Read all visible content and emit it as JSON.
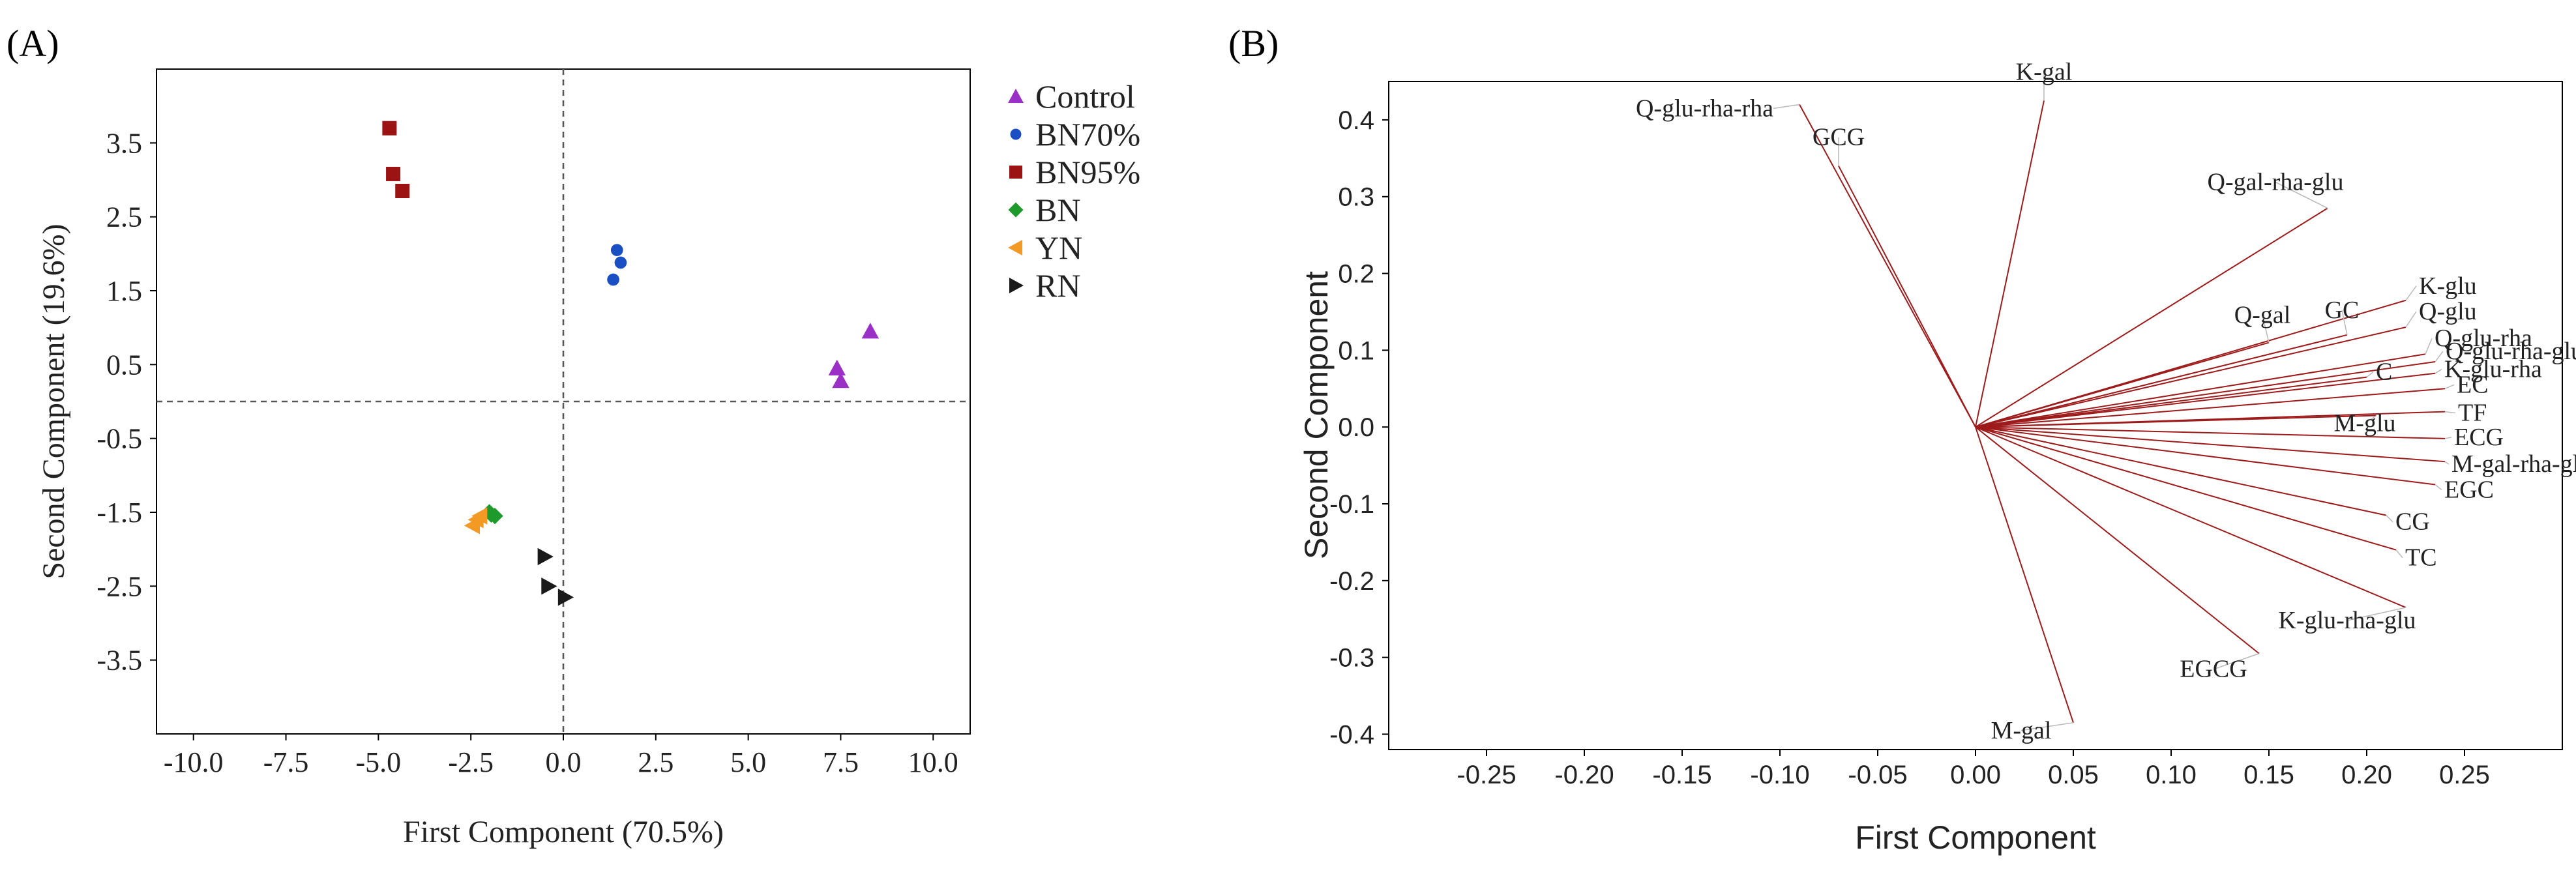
{
  "panel_a": {
    "label": "(A)",
    "chart_data": {
      "type": "scatter",
      "title": "",
      "xlabel": "First Component (70.5%)",
      "ylabel": "Second Component (19.6%)",
      "xlim": [
        -11.0,
        11.0
      ],
      "ylim": [
        -4.5,
        4.5
      ],
      "xticks": [
        -10.0,
        -7.5,
        -5.0,
        -2.5,
        0.0,
        2.5,
        5.0,
        7.5,
        10.0
      ],
      "xtick_labels": [
        "-10.0",
        "-7.5",
        "-5.0",
        "-2.5",
        "0.0",
        "2.5",
        "5.0",
        "7.5",
        "10.0"
      ],
      "yticks": [
        3.5,
        2.5,
        1.5,
        0.5,
        -0.5,
        -1.5,
        -2.5,
        -3.5
      ],
      "ytick_labels": [
        "3.5",
        "2.5",
        "1.5",
        "0.5",
        "-0.5",
        "-1.5",
        "-2.5",
        "-3.5"
      ],
      "reference_lines": {
        "x": 0.0,
        "y": 0.0
      },
      "legend_position": "right",
      "series": [
        {
          "name": "Control",
          "marker": "triangle-up",
          "color": "#9b30c7",
          "points": [
            [
              8.3,
              0.95
            ],
            [
              7.4,
              0.45
            ],
            [
              7.5,
              0.28
            ]
          ]
        },
        {
          "name": "BN70%",
          "marker": "circle",
          "color": "#1a4fc4",
          "points": [
            [
              1.45,
              2.05
            ],
            [
              1.55,
              1.88
            ],
            [
              1.35,
              1.65
            ]
          ]
        },
        {
          "name": "BN95%",
          "marker": "square",
          "color": "#9b1313",
          "points": [
            [
              -4.7,
              3.7
            ],
            [
              -4.6,
              3.08
            ],
            [
              -4.35,
              2.85
            ]
          ]
        },
        {
          "name": "BN",
          "marker": "diamond",
          "color": "#1e9a2c",
          "points": [
            [
              -2.0,
              -1.5
            ],
            [
              -1.85,
              -1.55
            ],
            [
              -1.95,
              -1.53
            ]
          ]
        },
        {
          "name": "YN",
          "marker": "triangle-left",
          "color": "#f39a24",
          "points": [
            [
              -2.35,
              -1.6
            ],
            [
              -2.45,
              -1.68
            ],
            [
              -2.25,
              -1.55
            ]
          ]
        },
        {
          "name": "RN",
          "marker": "triangle-right",
          "color": "#1a1a1a",
          "points": [
            [
              -0.5,
              -2.1
            ],
            [
              -0.4,
              -2.5
            ],
            [
              0.05,
              -2.65
            ]
          ]
        }
      ]
    }
  },
  "panel_b": {
    "label": "(B)",
    "chart_data": {
      "type": "loading-plot",
      "title": "",
      "xlabel": "First Component",
      "ylabel": "Second Component",
      "xlim": [
        -0.3,
        0.3
      ],
      "ylim": [
        -0.42,
        0.45
      ],
      "xticks": [
        -0.25,
        -0.2,
        -0.15,
        -0.1,
        -0.05,
        0.0,
        0.05,
        0.1,
        0.15,
        0.2,
        0.25
      ],
      "xtick_labels": [
        "-0.25",
        "-0.20",
        "-0.15",
        "-0.10",
        "-0.05",
        "0.00",
        "0.05",
        "0.10",
        "0.15",
        "0.20",
        "0.25"
      ],
      "yticks": [
        0.4,
        0.3,
        0.2,
        0.1,
        0.0,
        -0.1,
        -0.2,
        -0.3,
        -0.4
      ],
      "ytick_labels": [
        "0.4",
        "0.3",
        "0.2",
        "0.1",
        "0.0",
        "-0.1",
        "-0.2",
        "-0.3",
        "-0.4"
      ],
      "line_color": "#9e1b1b",
      "leader_color": "#b9b9b9",
      "vectors": [
        {
          "name": "K-gal",
          "x": 0.035,
          "y": 0.425
        },
        {
          "name": "Q-glu-rha-rha",
          "x": -0.09,
          "y": 0.42
        },
        {
          "name": "GCG",
          "x": -0.07,
          "y": 0.34
        },
        {
          "name": "Q-gal-rha-glu",
          "x": 0.18,
          "y": 0.285
        },
        {
          "name": "K-glu",
          "x": 0.22,
          "y": 0.165
        },
        {
          "name": "Q-glu",
          "x": 0.22,
          "y": 0.13
        },
        {
          "name": "Q-gal",
          "x": 0.15,
          "y": 0.11
        },
        {
          "name": "GC",
          "x": 0.19,
          "y": 0.12
        },
        {
          "name": "Q-glu-rha",
          "x": 0.23,
          "y": 0.095
        },
        {
          "name": "Q-glu-rha-glu",
          "x": 0.235,
          "y": 0.085
        },
        {
          "name": "K-glu-rha",
          "x": 0.235,
          "y": 0.07
        },
        {
          "name": "C",
          "x": 0.2,
          "y": 0.065
        },
        {
          "name": "EC",
          "x": 0.24,
          "y": 0.05
        },
        {
          "name": "TF",
          "x": 0.24,
          "y": 0.02
        },
        {
          "name": "M-glu",
          "x": 0.205,
          "y": 0.015
        },
        {
          "name": "ECG",
          "x": 0.24,
          "y": -0.015
        },
        {
          "name": "M-gal-rha-glu",
          "x": 0.24,
          "y": -0.045
        },
        {
          "name": "EGC",
          "x": 0.235,
          "y": -0.075
        },
        {
          "name": "CG",
          "x": 0.21,
          "y": -0.115
        },
        {
          "name": "TC",
          "x": 0.215,
          "y": -0.16
        },
        {
          "name": "K-glu-rha-glu",
          "x": 0.22,
          "y": -0.235
        },
        {
          "name": "EGCG",
          "x": 0.145,
          "y": -0.295
        },
        {
          "name": "M-gal",
          "x": 0.05,
          "y": -0.385
        }
      ]
    }
  }
}
